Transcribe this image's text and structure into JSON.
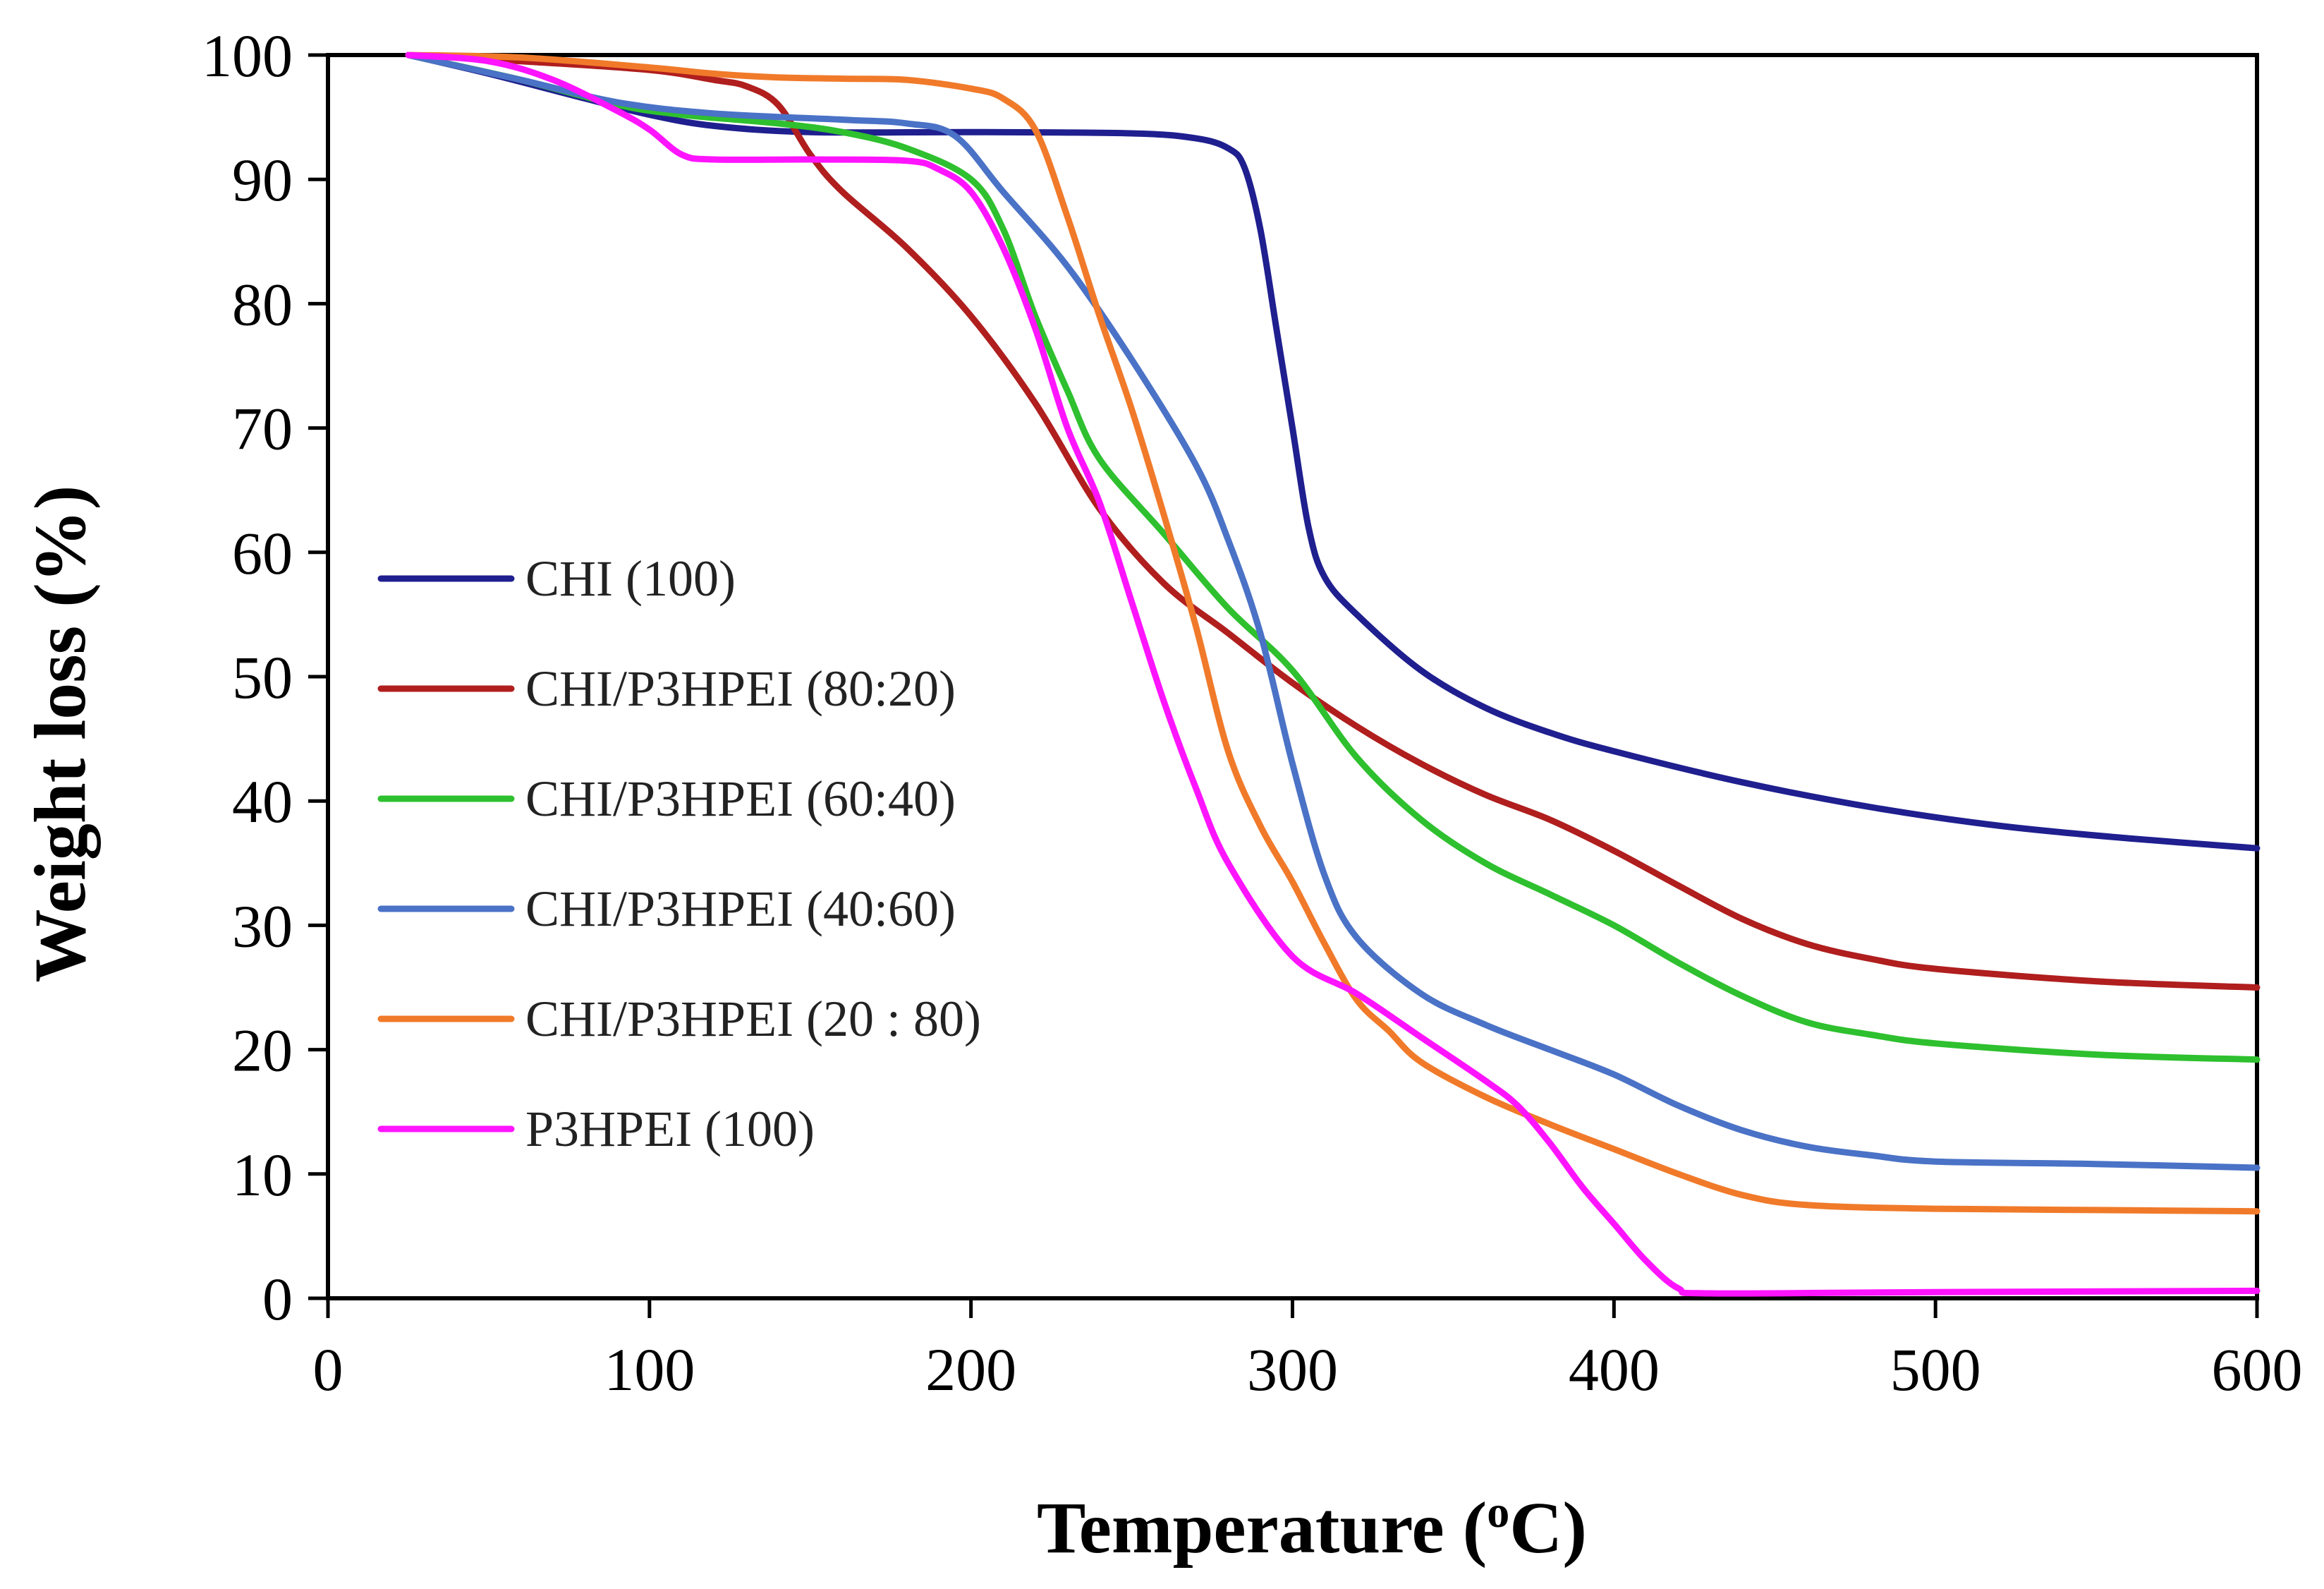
{
  "chart_data": {
    "type": "line",
    "xlabel": "Temperature (",
    "xlabel_sup": "o",
    "xlabel_tail": "C)",
    "ylabel": "Weight loss (%)",
    "xlim": [
      0,
      600
    ],
    "ylim": [
      0,
      100
    ],
    "x_ticks": [
      0,
      100,
      200,
      300,
      400,
      500,
      600
    ],
    "y_ticks": [
      0,
      10,
      20,
      30,
      40,
      50,
      60,
      70,
      80,
      90,
      100
    ],
    "grid": false,
    "legend_position": "left-center",
    "series": [
      {
        "name": "CHI (100)",
        "color": "#1f1f8f",
        "points": [
          [
            25,
            100
          ],
          [
            50,
            98.5
          ],
          [
            80,
            96.5
          ],
          [
            100,
            95.2
          ],
          [
            120,
            94.3
          ],
          [
            150,
            93.8
          ],
          [
            200,
            93.8
          ],
          [
            250,
            93.7
          ],
          [
            270,
            93.3
          ],
          [
            280,
            92.5
          ],
          [
            285,
            91
          ],
          [
            290,
            86
          ],
          [
            295,
            78
          ],
          [
            300,
            70
          ],
          [
            305,
            62
          ],
          [
            310,
            58
          ],
          [
            320,
            55
          ],
          [
            340,
            50.5
          ],
          [
            360,
            47.5
          ],
          [
            380,
            45.5
          ],
          [
            400,
            44
          ],
          [
            440,
            41.5
          ],
          [
            480,
            39.5
          ],
          [
            520,
            38
          ],
          [
            560,
            37
          ],
          [
            600,
            36.2
          ]
        ]
      },
      {
        "name": "CHI/P3HPEI (80:20)",
        "color": "#b01e1e",
        "points": [
          [
            25,
            100
          ],
          [
            60,
            99.5
          ],
          [
            100,
            98.8
          ],
          [
            120,
            98
          ],
          [
            130,
            97.5
          ],
          [
            140,
            96
          ],
          [
            150,
            92
          ],
          [
            160,
            89
          ],
          [
            180,
            84.5
          ],
          [
            200,
            79
          ],
          [
            220,
            72
          ],
          [
            240,
            63.5
          ],
          [
            260,
            57.5
          ],
          [
            280,
            53.5
          ],
          [
            300,
            49.5
          ],
          [
            320,
            46
          ],
          [
            340,
            43
          ],
          [
            360,
            40.5
          ],
          [
            380,
            38.5
          ],
          [
            400,
            36
          ],
          [
            420,
            33.2
          ],
          [
            440,
            30.5
          ],
          [
            460,
            28.5
          ],
          [
            480,
            27.3
          ],
          [
            500,
            26.5
          ],
          [
            550,
            25.5
          ],
          [
            600,
            25
          ]
        ]
      },
      {
        "name": "CHI/P3HPEI (60:40)",
        "color": "#2ec02e",
        "points": [
          [
            25,
            100
          ],
          [
            60,
            98
          ],
          [
            90,
            96
          ],
          [
            110,
            95.2
          ],
          [
            140,
            94.5
          ],
          [
            160,
            93.8
          ],
          [
            180,
            92.5
          ],
          [
            200,
            90
          ],
          [
            210,
            86
          ],
          [
            220,
            79
          ],
          [
            230,
            73
          ],
          [
            240,
            67.5
          ],
          [
            260,
            61.5
          ],
          [
            280,
            55.5
          ],
          [
            300,
            50.5
          ],
          [
            320,
            43.5
          ],
          [
            340,
            38.5
          ],
          [
            360,
            35
          ],
          [
            380,
            32.5
          ],
          [
            400,
            30
          ],
          [
            420,
            27
          ],
          [
            440,
            24.3
          ],
          [
            460,
            22.2
          ],
          [
            480,
            21.2
          ],
          [
            500,
            20.5
          ],
          [
            550,
            19.6
          ],
          [
            600,
            19.2
          ]
        ]
      },
      {
        "name": "CHI/P3HPEI (40:60)",
        "color": "#4a72c6",
        "points": [
          [
            25,
            100
          ],
          [
            60,
            98
          ],
          [
            90,
            96.2
          ],
          [
            120,
            95.3
          ],
          [
            160,
            94.8
          ],
          [
            180,
            94.5
          ],
          [
            195,
            93.5
          ],
          [
            210,
            89
          ],
          [
            230,
            83
          ],
          [
            250,
            75.5
          ],
          [
            270,
            67
          ],
          [
            280,
            61
          ],
          [
            290,
            53.5
          ],
          [
            300,
            43
          ],
          [
            310,
            34
          ],
          [
            320,
            29
          ],
          [
            340,
            24.5
          ],
          [
            360,
            22
          ],
          [
            380,
            20
          ],
          [
            400,
            18
          ],
          [
            420,
            15.5
          ],
          [
            440,
            13.5
          ],
          [
            460,
            12.2
          ],
          [
            480,
            11.5
          ],
          [
            500,
            11
          ],
          [
            550,
            10.8
          ],
          [
            600,
            10.5
          ]
        ]
      },
      {
        "name": "CHI/P3HPEI (20 : 80)",
        "color": "#f07a2a",
        "points": [
          [
            25,
            100
          ],
          [
            60,
            99.8
          ],
          [
            100,
            99
          ],
          [
            120,
            98.5
          ],
          [
            140,
            98.2
          ],
          [
            160,
            98.1
          ],
          [
            180,
            98
          ],
          [
            200,
            97.3
          ],
          [
            210,
            96.5
          ],
          [
            220,
            94
          ],
          [
            230,
            87
          ],
          [
            240,
            79
          ],
          [
            250,
            71.5
          ],
          [
            260,
            63
          ],
          [
            270,
            54
          ],
          [
            280,
            44
          ],
          [
            290,
            38
          ],
          [
            300,
            33.5
          ],
          [
            310,
            28.5
          ],
          [
            320,
            24
          ],
          [
            330,
            21.5
          ],
          [
            340,
            19
          ],
          [
            360,
            16.2
          ],
          [
            380,
            14
          ],
          [
            400,
            12
          ],
          [
            420,
            10
          ],
          [
            440,
            8.3
          ],
          [
            460,
            7.5
          ],
          [
            500,
            7.2
          ],
          [
            550,
            7.1
          ],
          [
            600,
            7
          ]
        ]
      },
      {
        "name": "P3HPEI (100)",
        "color": "#ff14ff",
        "points": [
          [
            25,
            100
          ],
          [
            50,
            99.5
          ],
          [
            70,
            98
          ],
          [
            90,
            95.5
          ],
          [
            100,
            94
          ],
          [
            110,
            92
          ],
          [
            120,
            91.6
          ],
          [
            150,
            91.6
          ],
          [
            180,
            91.5
          ],
          [
            190,
            90.8
          ],
          [
            200,
            89
          ],
          [
            210,
            84.5
          ],
          [
            220,
            78
          ],
          [
            230,
            70
          ],
          [
            240,
            64
          ],
          [
            250,
            56
          ],
          [
            260,
            48
          ],
          [
            270,
            41
          ],
          [
            280,
            35
          ],
          [
            300,
            27.5
          ],
          [
            320,
            24.5
          ],
          [
            340,
            21
          ],
          [
            360,
            17.5
          ],
          [
            370,
            15.5
          ],
          [
            380,
            12.5
          ],
          [
            390,
            9
          ],
          [
            400,
            6
          ],
          [
            410,
            3
          ],
          [
            420,
            0.8
          ],
          [
            430,
            0.4
          ],
          [
            500,
            0.5
          ],
          [
            600,
            0.6
          ]
        ]
      }
    ]
  }
}
